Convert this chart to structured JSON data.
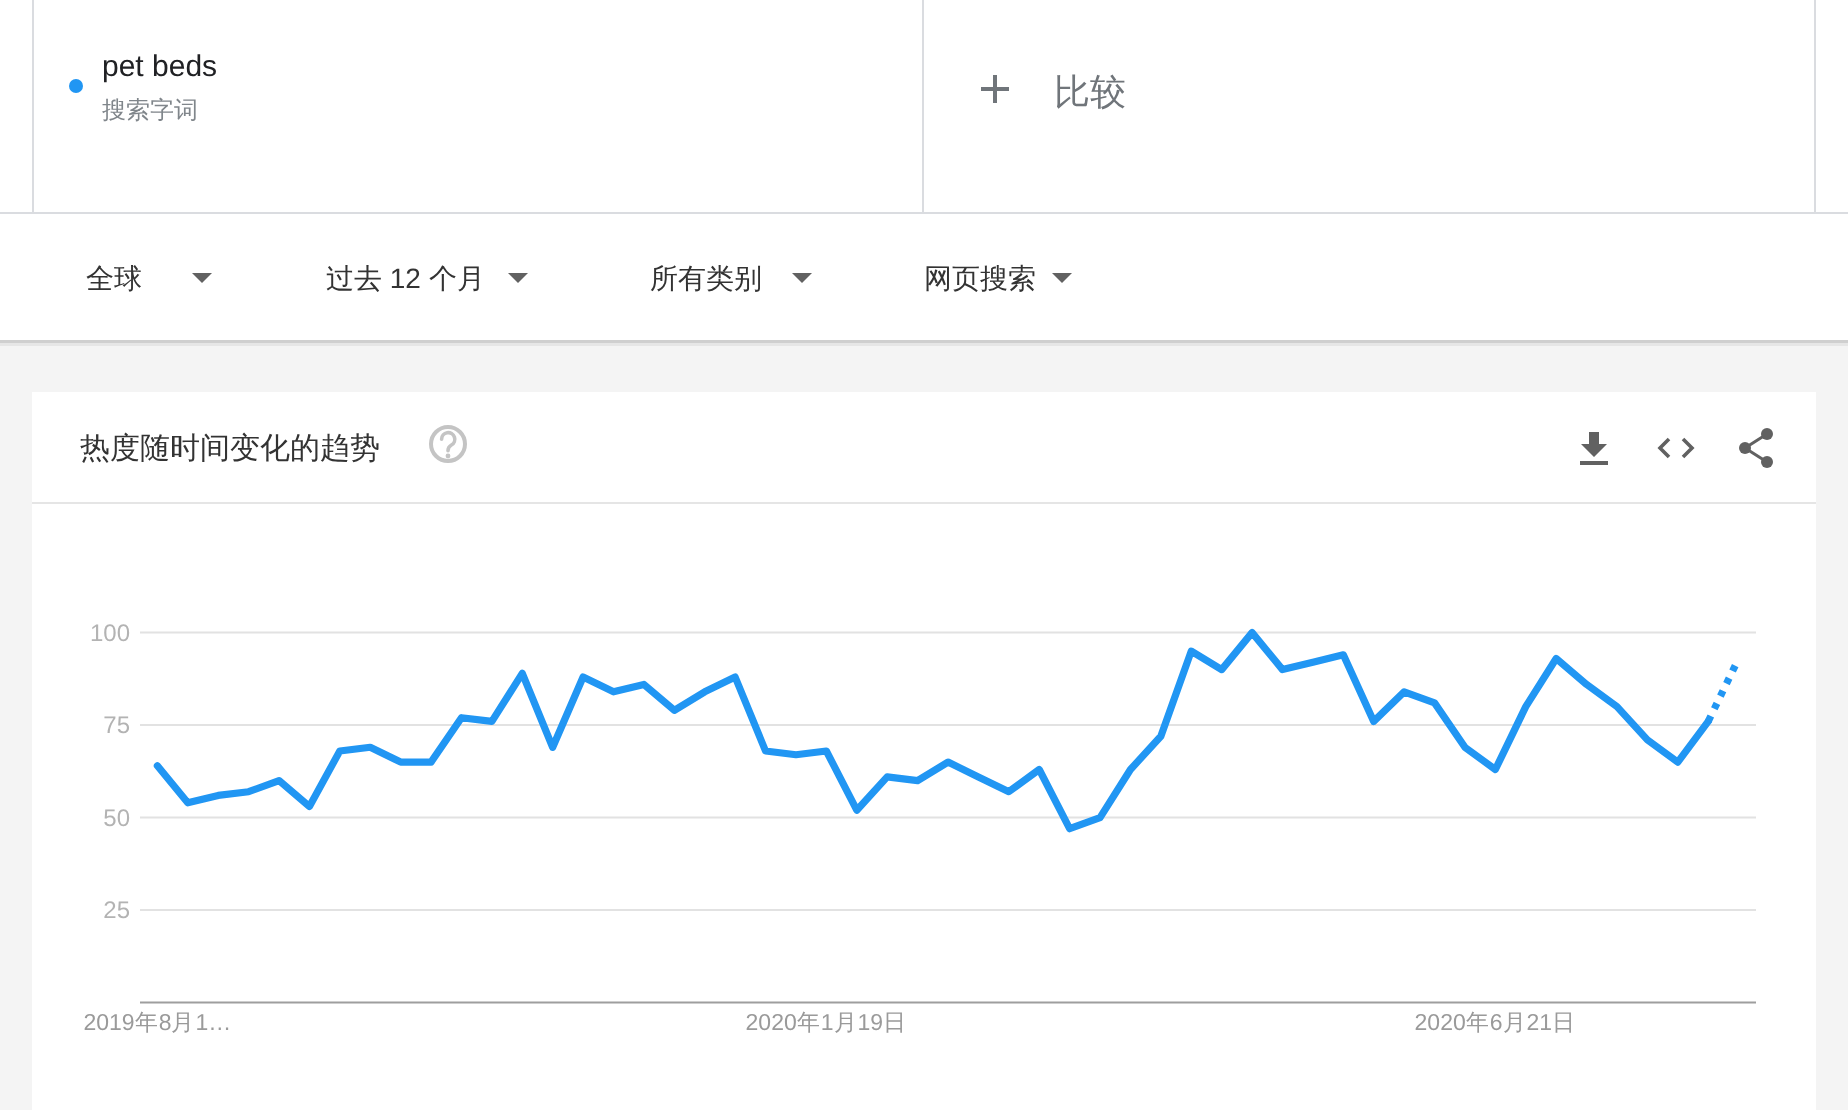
{
  "chart_data": {
    "type": "line",
    "title": "热度随时间变化的趋势",
    "annotations": [
      "搜索字词",
      "比较",
      "全球",
      "过去 12 个月",
      "所有类别",
      "网页搜索"
    ],
    "x": [
      "2019-08-18",
      "2019-08-25",
      "2019-09-01",
      "2019-09-08",
      "2019-09-15",
      "2019-09-22",
      "2019-09-29",
      "2019-10-06",
      "2019-10-13",
      "2019-10-20",
      "2019-10-27",
      "2019-11-03",
      "2019-11-10",
      "2019-11-17",
      "2019-11-24",
      "2019-12-01",
      "2019-12-08",
      "2019-12-15",
      "2019-12-22",
      "2019-12-29",
      "2020-01-05",
      "2020-01-12",
      "2020-01-19",
      "2020-01-26",
      "2020-02-02",
      "2020-02-09",
      "2020-02-16",
      "2020-02-23",
      "2020-03-01",
      "2020-03-08",
      "2020-03-15",
      "2020-03-22",
      "2020-03-29",
      "2020-04-05",
      "2020-04-12",
      "2020-04-19",
      "2020-04-26",
      "2020-05-03",
      "2020-05-10",
      "2020-05-17",
      "2020-05-24",
      "2020-05-31",
      "2020-06-07",
      "2020-06-14",
      "2020-06-21",
      "2020-06-28",
      "2020-07-05",
      "2020-07-12",
      "2020-07-19",
      "2020-07-26",
      "2020-08-02",
      "2020-08-09",
      "2020-08-16"
    ],
    "series": [
      {
        "name": "pet beds",
        "color": "#2196f3",
        "line_style": "solid",
        "values": [
          64,
          54,
          56,
          57,
          60,
          53,
          68,
          69,
          65,
          65,
          77,
          76,
          89,
          69,
          88,
          84,
          86,
          79,
          84,
          88,
          68,
          67,
          68,
          52,
          61,
          60,
          65,
          61,
          57,
          63,
          47,
          50,
          63,
          72,
          95,
          90,
          100,
          90,
          92,
          94,
          76,
          84,
          81,
          69,
          63,
          80,
          93,
          86,
          80,
          71,
          65,
          76,
          null
        ]
      },
      {
        "color": "#2196f3",
        "line_style": "dotted",
        "values": [
          null,
          null,
          null,
          null,
          null,
          null,
          null,
          null,
          null,
          null,
          null,
          null,
          null,
          null,
          null,
          null,
          null,
          null,
          null,
          null,
          null,
          null,
          null,
          null,
          null,
          null,
          null,
          null,
          null,
          null,
          null,
          null,
          null,
          null,
          null,
          null,
          null,
          null,
          null,
          null,
          null,
          null,
          null,
          null,
          null,
          null,
          null,
          null,
          null,
          null,
          null,
          76,
          93
        ]
      }
    ],
    "xlim": [
      "2019-08-14",
      "2020-08-20"
    ],
    "xticks": [
      {
        "value": "2019-08-18",
        "label": "2019年8月1…"
      },
      {
        "value": "2020-01-19",
        "label": "2020年1月19日"
      },
      {
        "value": "2020-06-21",
        "label": "2020年6月21日"
      }
    ],
    "ylim": [
      0,
      100
    ],
    "yticks": [
      25,
      50,
      75,
      100
    ],
    "grid": "y",
    "legend": "top left"
  }
}
